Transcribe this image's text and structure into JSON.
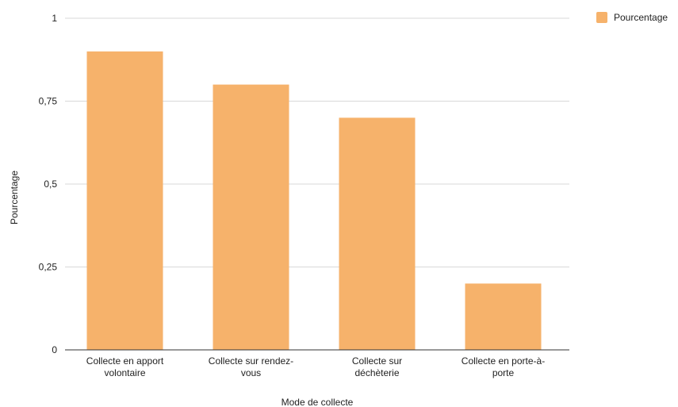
{
  "chart_data": {
    "type": "bar",
    "categories": [
      "Collecte en apport volontaire",
      "Collecte sur rendez-vous",
      "Collecte sur déchèterie",
      "Collecte en porte-à-porte"
    ],
    "category_label_lines": [
      [
        "Collecte en apport",
        "volontaire"
      ],
      [
        "Collecte sur rendez-",
        "vous"
      ],
      [
        "Collecte sur",
        "déchèterie"
      ],
      [
        "Collecte en porte-à-",
        "porte"
      ]
    ],
    "series": [
      {
        "name": "Pourcentage",
        "values": [
          0.9,
          0.8,
          0.7,
          0.2
        ],
        "color": "#f6b26b"
      }
    ],
    "xlabel": "Mode de collecte",
    "ylabel": "Pourcentage",
    "ylim": [
      0,
      1
    ],
    "yticks": [
      0,
      0.25,
      0.5,
      0.75,
      1
    ],
    "ytick_labels": [
      "0",
      "0,25",
      "0,5",
      "0,75",
      "1"
    ],
    "grid": true,
    "legend_position": "top-right",
    "gridline_color": "#d9d9d9",
    "axis_color": "#333333"
  },
  "legend": {
    "label": "Pourcentage"
  }
}
